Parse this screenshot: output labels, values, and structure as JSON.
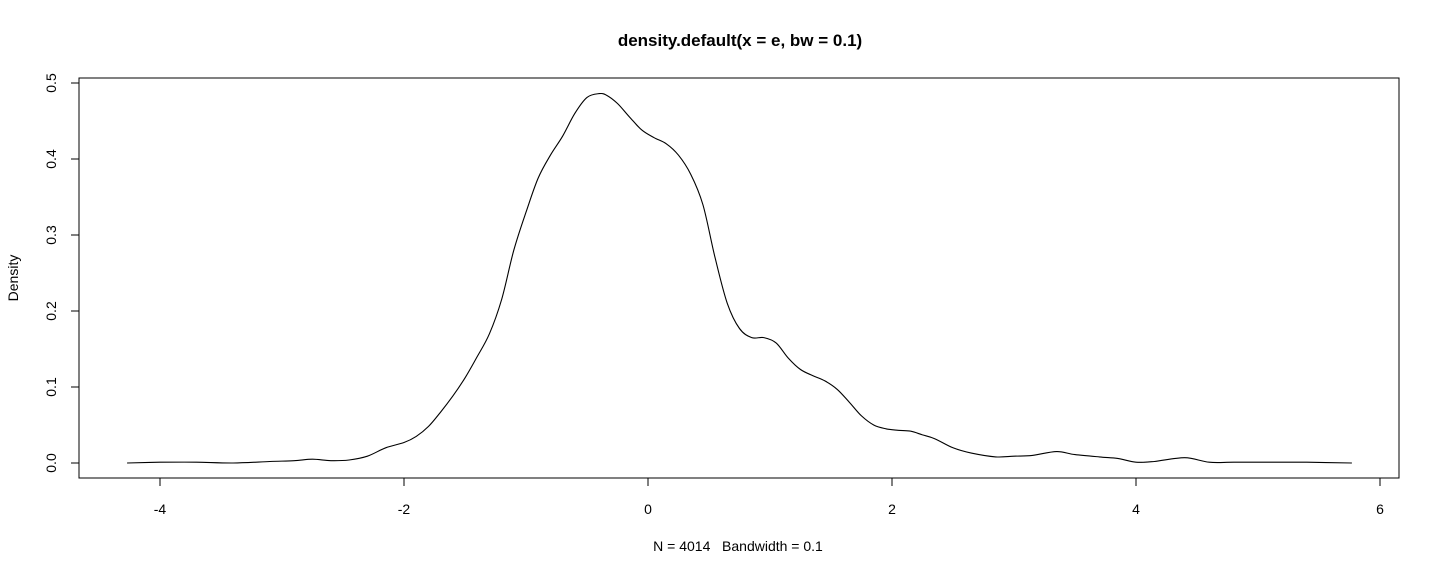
{
  "chart_data": {
    "type": "line",
    "title": "density.default(x = e, bw = 0.1)",
    "xlabel": "N = 4014   Bandwidth = 0.1",
    "ylabel": "Density",
    "xlim": [
      -4.5,
      6.3
    ],
    "ylim": [
      -0.02,
      0.52
    ],
    "xticks": [
      -4,
      -2,
      0,
      2,
      4,
      6
    ],
    "xtick_labels": [
      "-4",
      "-2",
      "0",
      "2",
      "4",
      "6"
    ],
    "yticks": [
      0.0,
      0.1,
      0.2,
      0.3,
      0.4,
      0.5
    ],
    "ytick_labels": [
      "0.0",
      "0.1",
      "0.2",
      "0.3",
      "0.4",
      "0.5"
    ],
    "grid": false,
    "legend": null,
    "series": [
      {
        "name": "density",
        "color": "#000000",
        "x": [
          -4.27,
          -4.0,
          -3.7,
          -3.4,
          -3.1,
          -2.9,
          -2.75,
          -2.6,
          -2.45,
          -2.3,
          -2.15,
          -2.0,
          -1.9,
          -1.8,
          -1.7,
          -1.6,
          -1.5,
          -1.4,
          -1.3,
          -1.2,
          -1.1,
          -1.0,
          -0.9,
          -0.8,
          -0.7,
          -0.6,
          -0.5,
          -0.4,
          -0.34,
          -0.25,
          -0.15,
          -0.05,
          0.05,
          0.15,
          0.25,
          0.35,
          0.45,
          0.55,
          0.65,
          0.75,
          0.85,
          0.95,
          1.05,
          1.15,
          1.25,
          1.35,
          1.45,
          1.55,
          1.65,
          1.75,
          1.85,
          1.95,
          2.05,
          2.15,
          2.25,
          2.35,
          2.5,
          2.65,
          2.85,
          3.0,
          3.15,
          3.35,
          3.5,
          3.7,
          3.85,
          4.0,
          4.15,
          4.4,
          4.6,
          4.8,
          5.1,
          5.4,
          5.77
        ],
        "values": [
          0.0,
          0.001,
          0.001,
          0.0,
          0.002,
          0.003,
          0.005,
          0.003,
          0.004,
          0.009,
          0.02,
          0.027,
          0.035,
          0.048,
          0.067,
          0.088,
          0.112,
          0.14,
          0.17,
          0.215,
          0.28,
          0.33,
          0.375,
          0.405,
          0.43,
          0.46,
          0.481,
          0.486,
          0.484,
          0.473,
          0.455,
          0.438,
          0.428,
          0.42,
          0.405,
          0.38,
          0.34,
          0.27,
          0.21,
          0.177,
          0.165,
          0.165,
          0.158,
          0.138,
          0.123,
          0.115,
          0.108,
          0.097,
          0.08,
          0.062,
          0.05,
          0.045,
          0.043,
          0.042,
          0.037,
          0.032,
          0.02,
          0.013,
          0.008,
          0.009,
          0.01,
          0.015,
          0.011,
          0.008,
          0.006,
          0.001,
          0.002,
          0.007,
          0.001,
          0.001,
          0.001,
          0.001,
          0.0
        ]
      }
    ]
  }
}
